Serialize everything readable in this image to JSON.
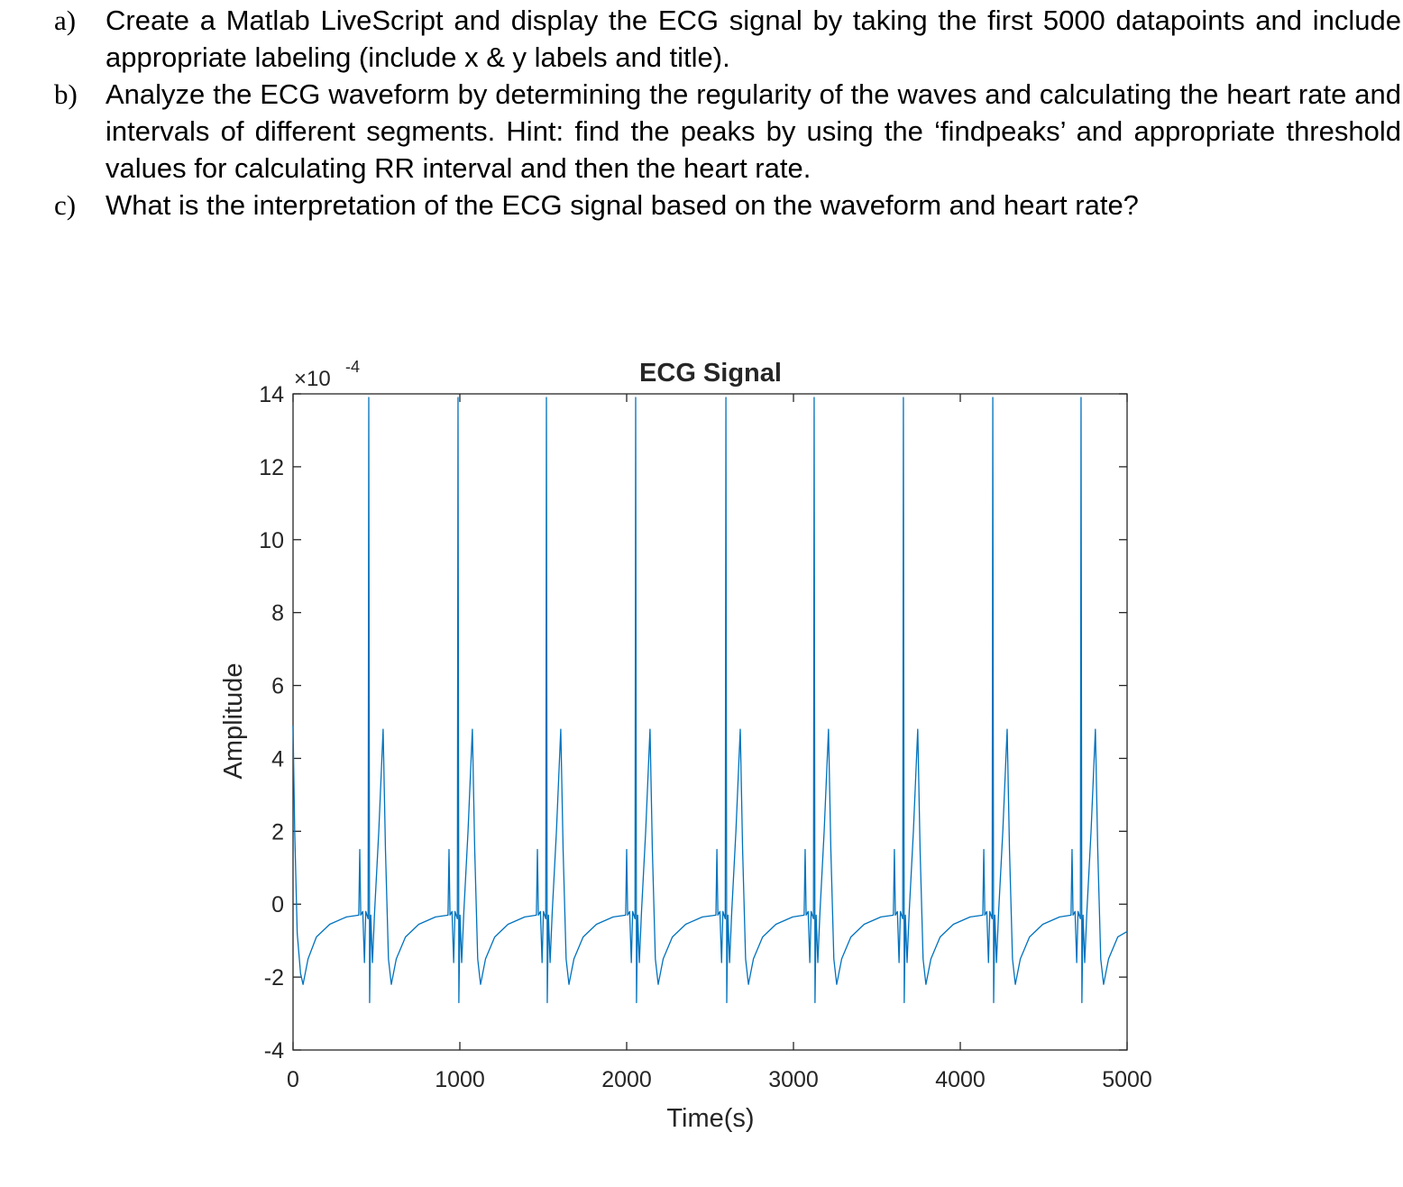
{
  "questions": [
    {
      "label": "a)",
      "text": "Create a Matlab LiveScript and display the ECG signal by taking the first 5000 datapoints and include appropriate labeling (include x & y labels and title)."
    },
    {
      "label": "b)",
      "text": "Analyze the ECG waveform by determining the regularity of the waves and calculating the heart rate and intervals of different segments. Hint: find the peaks by using the ‘findpeaks’ and appropriate threshold values for calculating RR interval and then the heart rate."
    },
    {
      "label": "c)",
      "text": "What is the interpretation of the ECG signal based on the waveform and heart rate?"
    }
  ],
  "chart_data": {
    "type": "line",
    "title": "ECG Signal",
    "x_label": "Time(s)",
    "y_label": "Amplitude",
    "y_exponent": {
      "base": "×10",
      "power": "-4"
    },
    "color": "#0072bd",
    "xlim": [
      0,
      5000
    ],
    "xticks": [
      0,
      1000,
      2000,
      3000,
      4000,
      5000
    ],
    "ylim": [
      -4,
      14
    ],
    "yticks": [
      -4,
      -2,
      0,
      2,
      4,
      6,
      8,
      10,
      12,
      14
    ],
    "x": [
      0,
      10,
      25,
      45,
      60,
      90,
      140,
      220,
      320,
      394,
      400,
      406,
      418,
      428,
      436,
      450,
      454,
      459,
      466,
      476,
      489,
      514,
      540,
      554,
      572,
      589,
      619,
      674,
      754,
      854,
      929,
      935,
      941,
      953,
      963,
      971,
      985,
      989,
      994,
      1001,
      1011,
      1024,
      1049,
      1075,
      1089,
      1107,
      1124,
      1154,
      1209,
      1289,
      1389,
      1459,
      1465,
      1471,
      1483,
      1493,
      1501,
      1515,
      1519,
      1524,
      1531,
      1541,
      1554,
      1579,
      1605,
      1619,
      1637,
      1654,
      1684,
      1739,
      1819,
      1919,
      1994,
      2000,
      2006,
      2018,
      2028,
      2036,
      2050,
      2054,
      2059,
      2066,
      2076,
      2089,
      2114,
      2140,
      2154,
      2172,
      2189,
      2219,
      2274,
      2354,
      2454,
      2535,
      2541,
      2547,
      2559,
      2569,
      2577,
      2591,
      2595,
      2600,
      2607,
      2617,
      2630,
      2655,
      2681,
      2695,
      2713,
      2730,
      2760,
      2815,
      2895,
      2995,
      3064,
      3070,
      3076,
      3088,
      3098,
      3106,
      3120,
      3124,
      3129,
      3136,
      3146,
      3159,
      3184,
      3210,
      3224,
      3242,
      3259,
      3289,
      3344,
      3424,
      3524,
      3599,
      3605,
      3611,
      3623,
      3633,
      3641,
      3655,
      3659,
      3664,
      3671,
      3681,
      3694,
      3719,
      3745,
      3759,
      3777,
      3794,
      3824,
      3879,
      3959,
      4059,
      4135,
      4141,
      4147,
      4159,
      4169,
      4177,
      4191,
      4195,
      4200,
      4207,
      4217,
      4230,
      4255,
      4281,
      4295,
      4313,
      4330,
      4360,
      4415,
      4495,
      4595,
      4664,
      4670,
      4676,
      4688,
      4698,
      4706,
      4720,
      4724,
      4729,
      4736,
      4746,
      4759,
      4784,
      4810,
      4824,
      4842,
      4859,
      4889,
      4944,
      5000
    ],
    "values": [
      4.9,
      2.0,
      -0.8,
      -1.9,
      -2.2,
      -1.5,
      -0.9,
      -0.55,
      -0.35,
      -0.3,
      1.5,
      -0.3,
      -0.2,
      -1.6,
      -0.2,
      -0.4,
      13.9,
      -2.7,
      -0.3,
      -1.6,
      -0.2,
      2.0,
      4.8,
      1.5,
      -1.5,
      -2.2,
      -1.5,
      -0.9,
      -0.55,
      -0.35,
      -0.3,
      1.5,
      -0.3,
      -0.2,
      -1.6,
      -0.2,
      -0.4,
      13.9,
      -2.7,
      -0.3,
      -1.6,
      -0.2,
      2.0,
      4.8,
      1.5,
      -1.5,
      -2.2,
      -1.5,
      -0.9,
      -0.55,
      -0.35,
      -0.3,
      1.5,
      -0.3,
      -0.2,
      -1.6,
      -0.2,
      -0.4,
      13.9,
      -2.7,
      -0.3,
      -1.6,
      -0.2,
      2.0,
      4.8,
      1.5,
      -1.5,
      -2.2,
      -1.5,
      -0.9,
      -0.55,
      -0.35,
      -0.3,
      1.5,
      -0.3,
      -0.2,
      -1.6,
      -0.2,
      -0.4,
      13.9,
      -2.7,
      -0.3,
      -1.6,
      -0.2,
      2.0,
      4.8,
      1.5,
      -1.5,
      -2.2,
      -1.5,
      -0.9,
      -0.55,
      -0.35,
      -0.3,
      1.5,
      -0.3,
      -0.2,
      -1.6,
      -0.2,
      -0.4,
      13.9,
      -2.7,
      -0.3,
      -1.6,
      -0.2,
      2.0,
      4.8,
      1.5,
      -1.5,
      -2.2,
      -1.5,
      -0.9,
      -0.55,
      -0.35,
      -0.3,
      1.5,
      -0.3,
      -0.2,
      -1.6,
      -0.2,
      -0.4,
      13.9,
      -2.7,
      -0.3,
      -1.6,
      -0.2,
      2.0,
      4.8,
      1.5,
      -1.5,
      -2.2,
      -1.5,
      -0.9,
      -0.55,
      -0.35,
      -0.3,
      1.5,
      -0.3,
      -0.2,
      -1.6,
      -0.2,
      -0.4,
      13.9,
      -2.7,
      -0.3,
      -1.6,
      -0.2,
      2.0,
      4.8,
      1.5,
      -1.5,
      -2.2,
      -1.5,
      -0.9,
      -0.55,
      -0.35,
      -0.3,
      1.5,
      -0.3,
      -0.2,
      -1.6,
      -0.2,
      -0.4,
      13.9,
      -2.7,
      -0.3,
      -1.6,
      -0.2,
      2.0,
      4.8,
      1.5,
      -1.5,
      -2.2,
      -1.5,
      -0.9,
      -0.55,
      -0.35,
      -0.3,
      1.5,
      -0.3,
      -0.2,
      -1.6,
      -0.2,
      -0.4,
      13.9,
      -2.7,
      -0.3,
      -1.6,
      -0.2,
      2.0,
      4.8,
      1.5,
      -1.5,
      -2.2,
      -1.5,
      -0.9,
      -0.75
    ]
  }
}
